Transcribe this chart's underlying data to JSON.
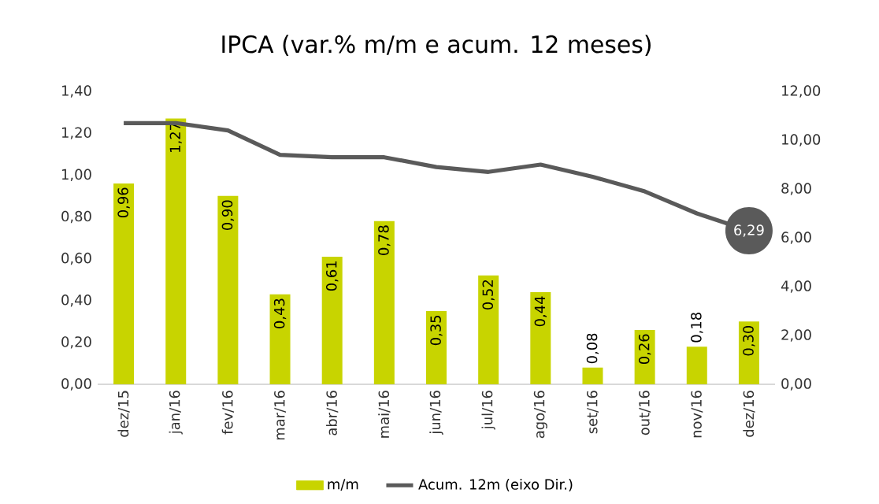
{
  "chart_data": {
    "type": "bar",
    "title": "IPCA (var.% m/m e acum. 12 meses)",
    "categories": [
      "dez/15",
      "jan/16",
      "fev/16",
      "mar/16",
      "abr/16",
      "mai/16",
      "jun/16",
      "jul/16",
      "ago/16",
      "set/16",
      "out/16",
      "nov/16",
      "dez/16"
    ],
    "series": [
      {
        "name": "m/m",
        "color": "#c8d400",
        "values": [
          0.96,
          1.27,
          0.9,
          0.43,
          0.61,
          0.78,
          0.35,
          0.52,
          0.44,
          0.08,
          0.26,
          0.18,
          0.3
        ],
        "value_labels": [
          "0,96",
          "1,27",
          "0,90",
          "0,43",
          "0,61",
          "0,78",
          "0,35",
          "0,52",
          "0,44",
          "0,08",
          "0,26",
          "0,18",
          "0,30"
        ]
      },
      {
        "name": "Acum. 12m (eixo Dir.)",
        "type": "line",
        "axis": "y2",
        "color": "#5a5a5a",
        "values": [
          10.7,
          10.7,
          10.4,
          9.4,
          9.3,
          9.3,
          8.9,
          8.7,
          9.0,
          8.5,
          7.9,
          7.0,
          6.29
        ],
        "value_labels": [
          null,
          null,
          null,
          null,
          null,
          null,
          null,
          null,
          null,
          null,
          null,
          null,
          "6,29"
        ]
      }
    ],
    "ylim": [
      0,
      1.4
    ],
    "yticks": [
      {
        "value": 0,
        "label": "0,00"
      },
      {
        "value": 0.2,
        "label": "0,20"
      },
      {
        "value": 0.4,
        "label": "0,40"
      },
      {
        "value": 0.6,
        "label": "0,60"
      },
      {
        "value": 0.8,
        "label": "0,80"
      },
      {
        "value": 1.0,
        "label": "1,00"
      },
      {
        "value": 1.2,
        "label": "1,20"
      },
      {
        "value": 1.4,
        "label": "1,40"
      }
    ],
    "y2lim": [
      0,
      12
    ],
    "y2ticks": [
      {
        "value": 0,
        "label": "0,00"
      },
      {
        "value": 2,
        "label": "2,00"
      },
      {
        "value": 4,
        "label": "4,00"
      },
      {
        "value": 6,
        "label": "6,00"
      },
      {
        "value": 8,
        "label": "8,00"
      },
      {
        "value": 10,
        "label": "10,00"
      },
      {
        "value": 12,
        "label": "12,00"
      }
    ],
    "legend": "bottom"
  }
}
